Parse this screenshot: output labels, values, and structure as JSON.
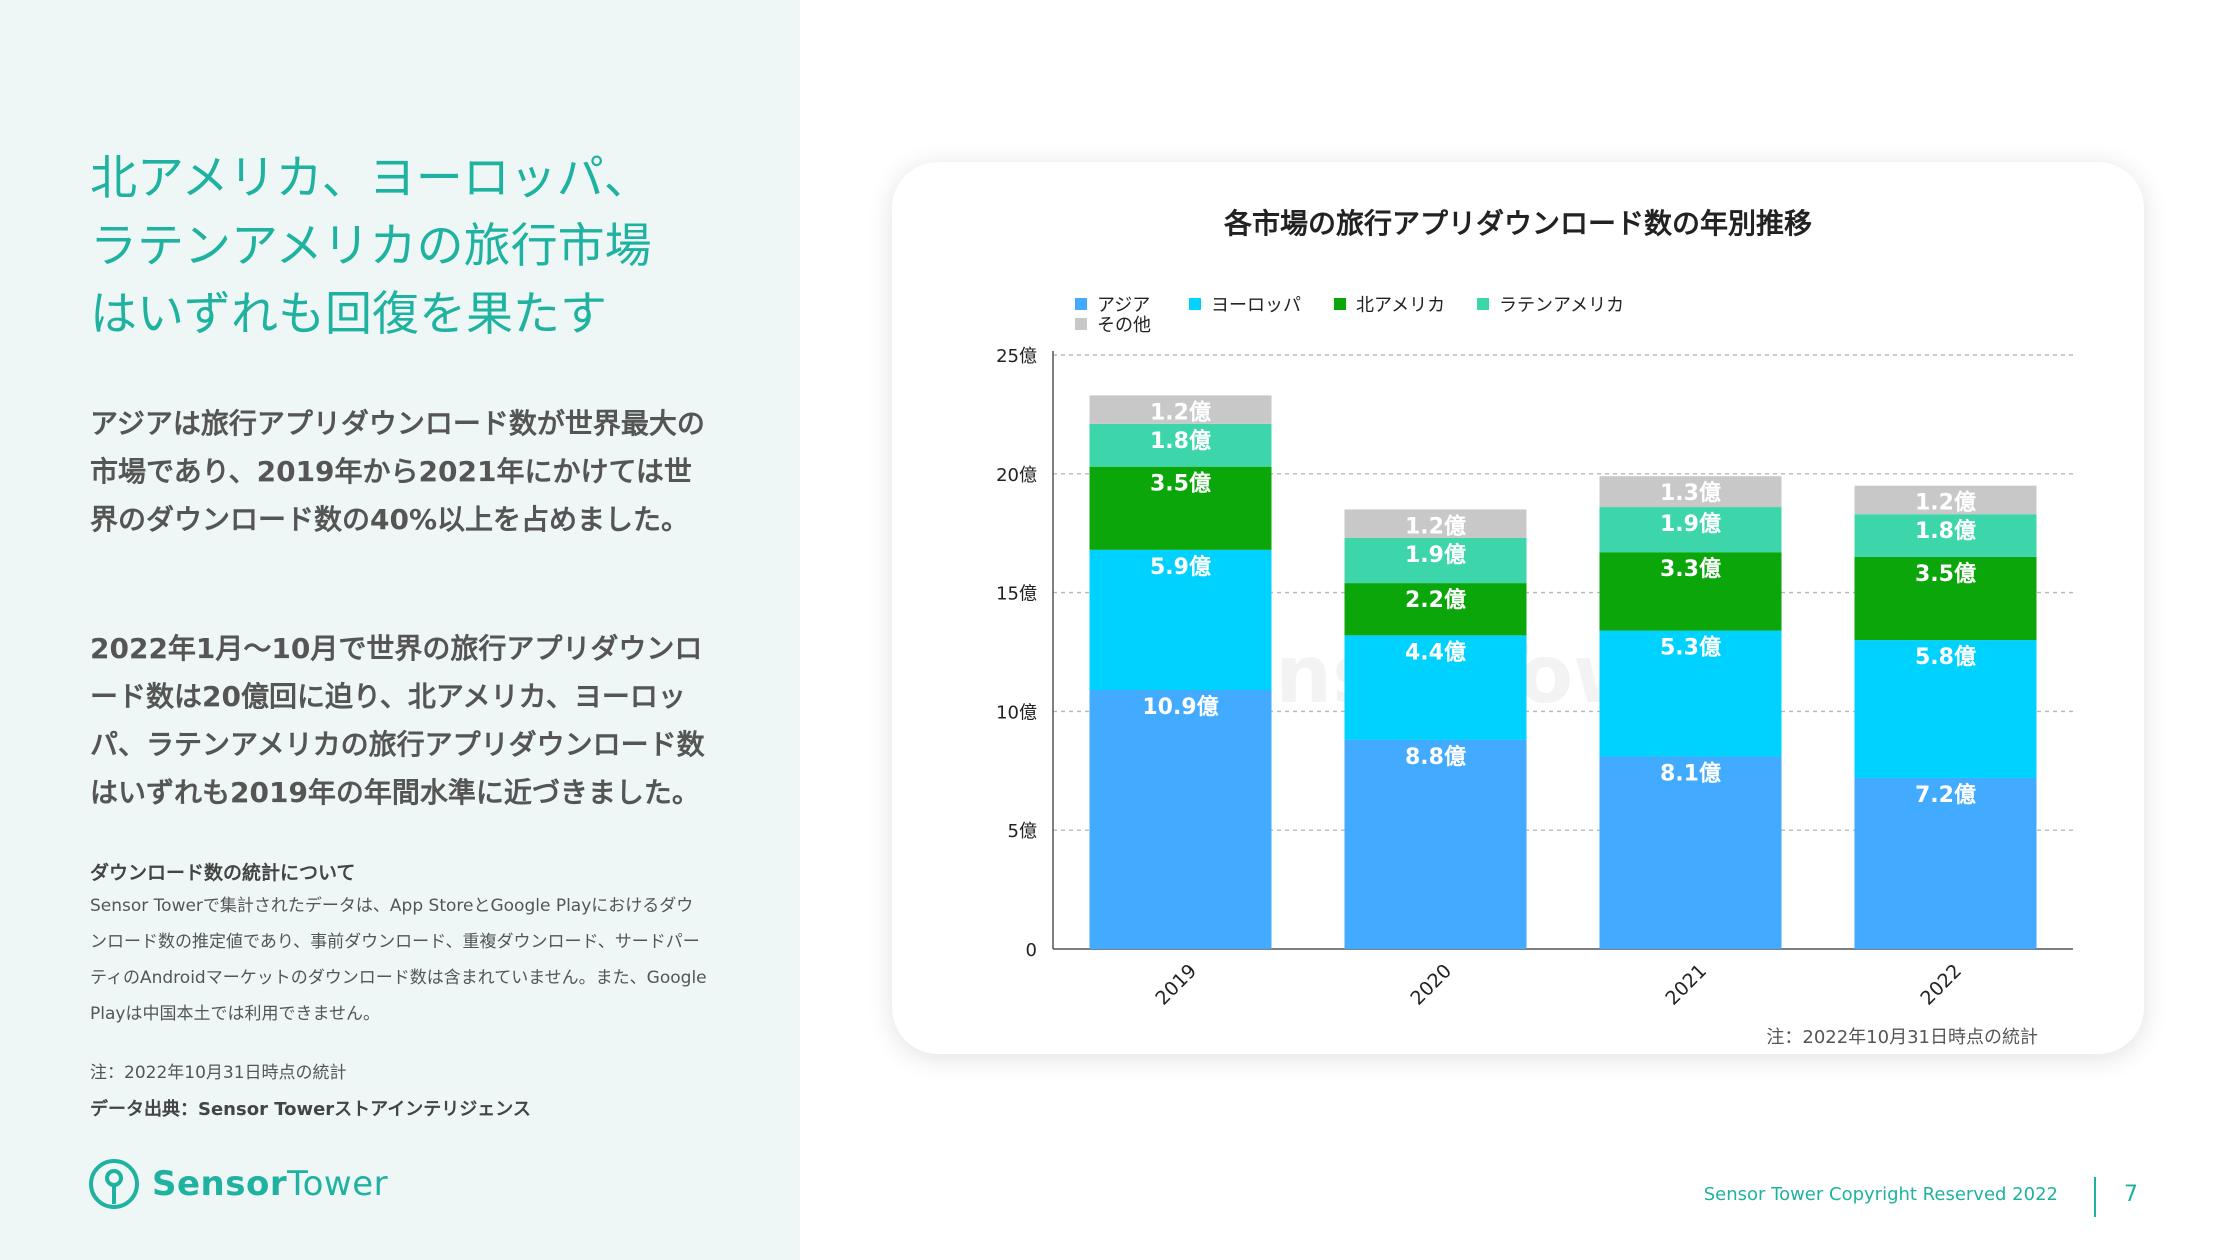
{
  "headline": [
    "北アメリカ、ヨーロッパ、",
    "ラテンアメリカの旅行市場",
    "はいずれも回復を果たす"
  ],
  "paragraph1": "アジアは旅行アプリダウンロード数が世界最大の市場であり、2019年から2021年にかけては世界のダウンロード数の40%以上を占めました。",
  "paragraph2": "2022年1月～10月で世界の旅行アプリダウンロード数は20億回に迫り、北アメリカ、ヨーロッパ、ラテンアメリカの旅行アプリダウンロード数はいずれも2019年の年間水準に近づきました。",
  "note_title": "ダウンロード数の統計について",
  "note_text": "Sensor Towerで集計されたデータは、App StoreとGoogle Playにおけるダウンロード数の推定値であり、事前ダウンロード、重複ダウンロード、サードパーティのAndroidマーケットのダウンロード数は含まれていません。また、Google Playは中国本土では利用できません。",
  "footnote": "注：2022年10月31日時点の統計",
  "source": "データ出典：Sensor Towerストアインテリジェンス",
  "logo": {
    "brand": "Sensor",
    "brand_light": "Tower"
  },
  "copyright": "Sensor Tower Copyright Reserved 2022",
  "page_number": "7",
  "colors": {
    "accent": "#1fb2a0"
  },
  "chart_data": {
    "type": "bar",
    "stacked": true,
    "title": "各市場の旅行アプリダウンロード数の年別推移",
    "categories": [
      "2019",
      "2020",
      "2021",
      "2022"
    ],
    "series": [
      {
        "name": "アジア",
        "color": "#42aaff",
        "values": [
          10.9,
          8.8,
          8.1,
          7.2
        ],
        "labels": [
          "10.9億",
          "8.8億",
          "8.1億",
          "7.2億"
        ]
      },
      {
        "name": "ヨーロッパ",
        "color": "#00d2ff",
        "values": [
          5.9,
          4.4,
          5.3,
          5.8
        ],
        "labels": [
          "5.9億",
          "4.4億",
          "5.3億",
          "5.8億"
        ]
      },
      {
        "name": "北アメリカ",
        "color": "#0aa60a",
        "values": [
          3.5,
          2.2,
          3.3,
          3.5
        ],
        "labels": [
          "3.5億",
          "2.2億",
          "3.3億",
          "3.5億"
        ]
      },
      {
        "name": "ラテンアメリカ",
        "color": "#3dd6ab",
        "values": [
          1.8,
          1.9,
          1.9,
          1.8
        ],
        "labels": [
          "1.8億",
          "1.9億",
          "1.9億",
          "1.8億"
        ]
      },
      {
        "name": "その他",
        "color": "#c8c8c8",
        "values": [
          1.2,
          1.2,
          1.3,
          1.2
        ],
        "labels": [
          "1.2億",
          "1.2億",
          "1.3億",
          "1.2億"
        ]
      }
    ],
    "yticks": [
      "0",
      "5億",
      "10億",
      "15億",
      "20億",
      "25億"
    ],
    "ytick_values": [
      0,
      5,
      10,
      15,
      20,
      25
    ],
    "ylim": [
      0,
      25
    ],
    "xlabel": "",
    "ylabel": "",
    "legend_position": "top-left",
    "watermark": "SensorTower",
    "annotation": "注：2022年10月31日時点の統計"
  }
}
